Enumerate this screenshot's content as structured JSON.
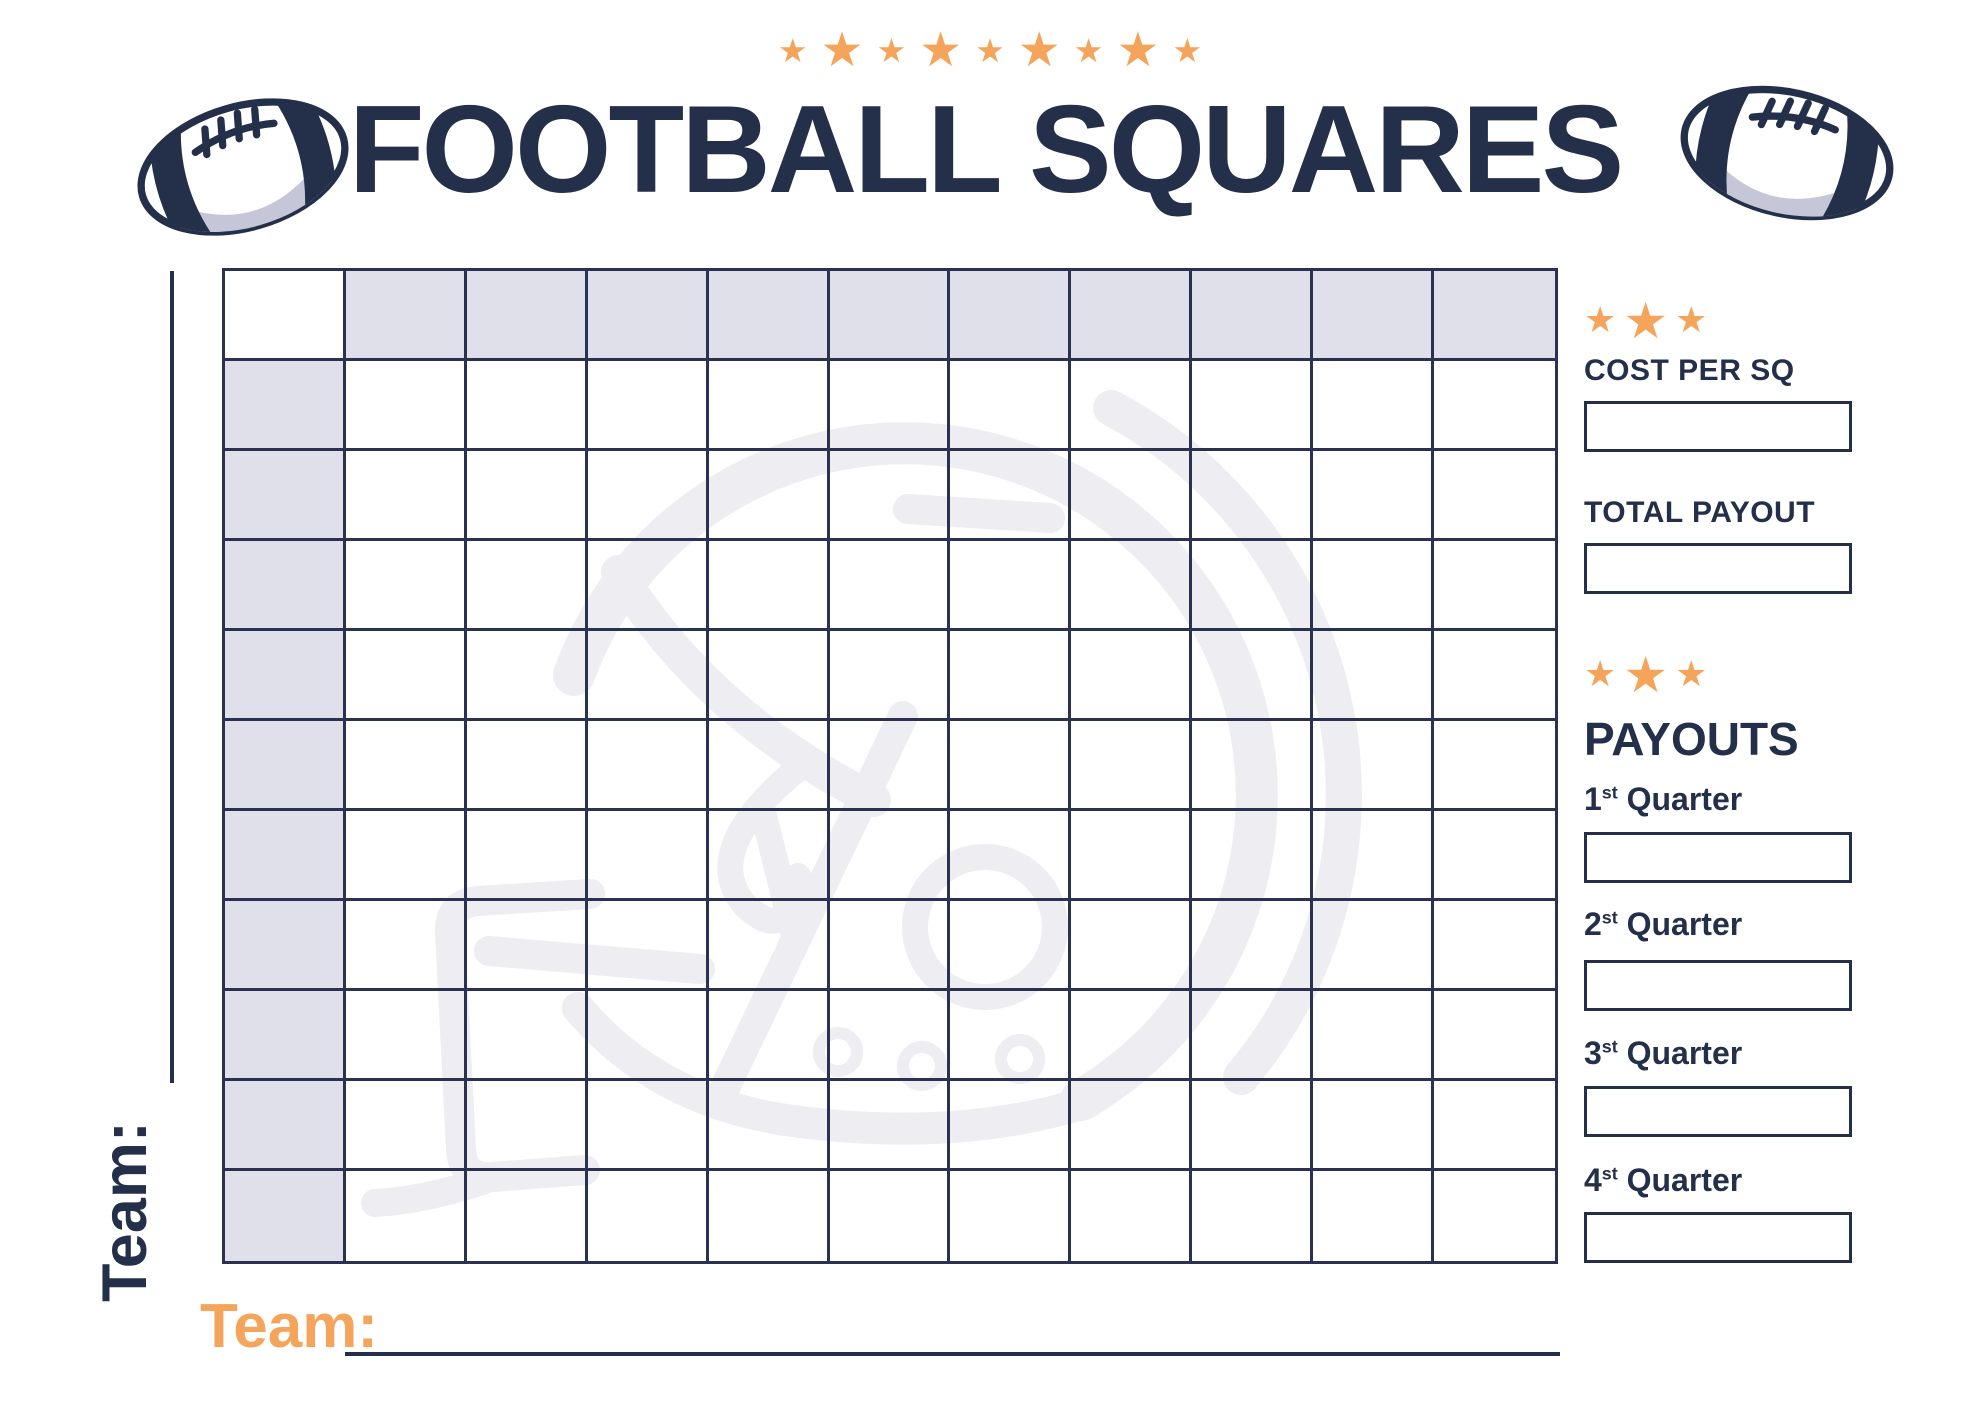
{
  "page_title": "FOOTBALL SQUARES",
  "star_char": "★",
  "header": {
    "title": "FOOTBALL SQUARES",
    "top_stars": [
      "small",
      "large",
      "small",
      "large",
      "small",
      "large",
      "small",
      "large",
      "small"
    ]
  },
  "grid": {
    "rows": 11,
    "cols": 11,
    "header_row_shaded": true,
    "header_col_shaded": true,
    "cells_empty": true
  },
  "left_team": {
    "label": "Team:",
    "value": ""
  },
  "bottom_team": {
    "label": "Team:",
    "value": ""
  },
  "sidebar": {
    "stars_cost": [
      "small",
      "large",
      "small"
    ],
    "cost_label": "COST PER SQ",
    "cost_value": "",
    "payout_label": "TOTAL PAYOUT",
    "payout_value": "",
    "stars_payouts": [
      "small",
      "large",
      "small"
    ],
    "payouts_title": "PAYOUTS",
    "quarters": [
      {
        "number": "1",
        "suffix": "st",
        "word": "Quarter",
        "value": ""
      },
      {
        "number": "2",
        "suffix": "st",
        "word": "Quarter",
        "value": ""
      },
      {
        "number": "3",
        "suffix": "st",
        "word": "Quarter",
        "value": ""
      },
      {
        "number": "4",
        "suffix": "st",
        "word": "Quarter",
        "value": ""
      }
    ]
  },
  "colors": {
    "navy": "#243049",
    "grid_line": "#2b3150",
    "orange": "#f4a55b",
    "shaded_cell": "#e0e0ea",
    "watermark": "#ededf2",
    "football_shadow": "#c5c7d8"
  },
  "icons": [
    "football-icon",
    "helmet-watermark-icon",
    "star-icon"
  ]
}
